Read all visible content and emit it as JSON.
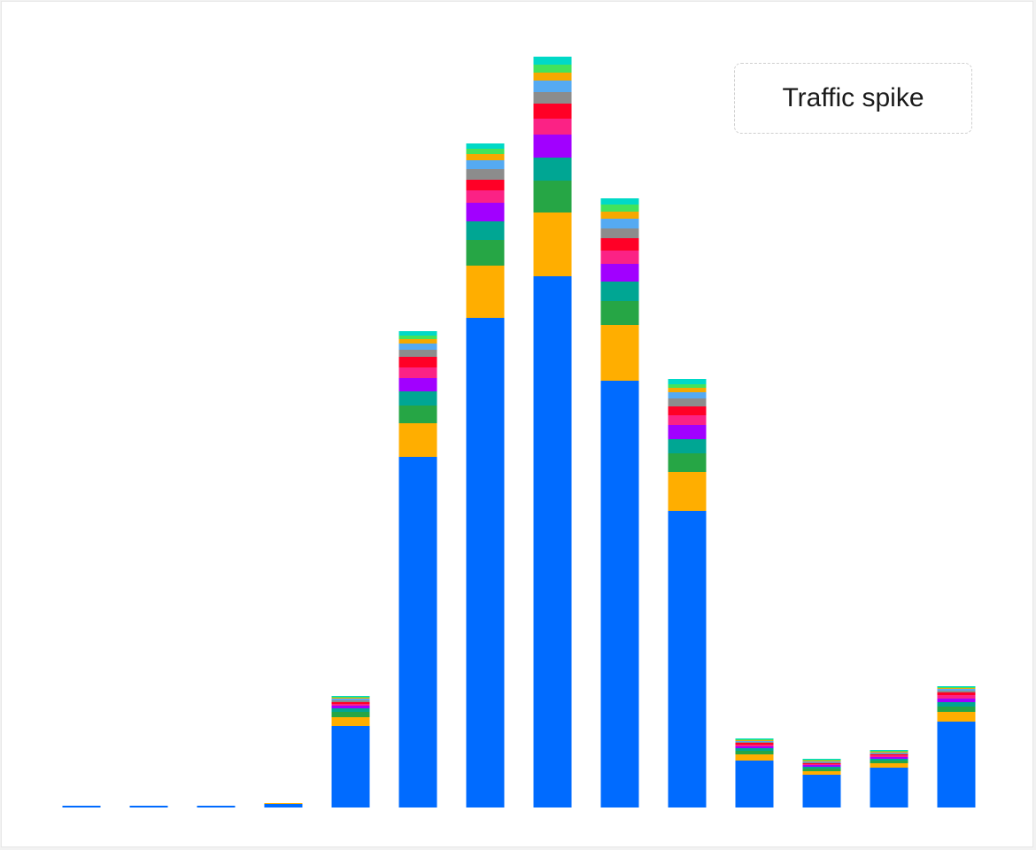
{
  "legend": {
    "label": "Traffic spike"
  },
  "chart_data": {
    "type": "bar",
    "stacked": true,
    "legend_placement": "top-right",
    "grid": false,
    "ylim": [
      0,
      850
    ],
    "categories": [
      "",
      "",
      "",
      "",
      "",
      "",
      "",
      "",
      "",
      "",
      "",
      "",
      "",
      ""
    ],
    "series": [
      {
        "color": "#006bff",
        "values": [
          2,
          2,
          2,
          4,
          92,
          396,
          553,
          600,
          482,
          335,
          53,
          37,
          45,
          97
        ]
      },
      {
        "color": "#ffae00",
        "values": [
          0,
          0,
          0,
          1,
          10,
          38,
          59,
          72,
          63,
          44,
          7,
          4,
          5,
          11
        ]
      },
      {
        "color": "#26a645",
        "values": [
          0,
          0,
          0,
          0,
          6,
          20,
          29,
          36,
          27,
          21,
          4,
          3,
          3,
          6
        ]
      },
      {
        "color": "#00a693",
        "values": [
          0,
          0,
          0,
          0,
          4,
          16,
          21,
          26,
          22,
          16,
          3,
          2,
          2,
          5
        ]
      },
      {
        "color": "#a100ff",
        "values": [
          0,
          0,
          0,
          0,
          3,
          15,
          21,
          26,
          20,
          16,
          2,
          2,
          2,
          4
        ]
      },
      {
        "color": "#fb2285",
        "values": [
          0,
          0,
          0,
          0,
          2,
          12,
          14,
          18,
          15,
          11,
          2,
          1,
          2,
          4
        ]
      },
      {
        "color": "#ff0026",
        "values": [
          0,
          0,
          0,
          0,
          2,
          12,
          12,
          17,
          14,
          10,
          2,
          1,
          1,
          3
        ]
      },
      {
        "color": "#8c8c8c",
        "values": [
          0,
          0,
          0,
          0,
          2,
          8,
          12,
          13,
          11,
          9,
          1,
          1,
          1,
          2
        ]
      },
      {
        "color": "#55aaf2",
        "values": [
          0,
          0,
          0,
          0,
          2,
          7,
          10,
          13,
          11,
          7,
          1,
          1,
          1,
          2
        ]
      },
      {
        "color": "#f5a800",
        "values": [
          0,
          0,
          0,
          0,
          1,
          5,
          7,
          9,
          8,
          5,
          1,
          1,
          1,
          1
        ]
      },
      {
        "color": "#42e35b",
        "values": [
          0,
          0,
          0,
          0,
          1,
          4,
          6,
          9,
          8,
          4,
          1,
          1,
          1,
          1
        ]
      },
      {
        "color": "#00d9c7",
        "values": [
          0,
          0,
          0,
          0,
          1,
          5,
          6,
          9,
          7,
          6,
          1,
          1,
          1,
          1
        ]
      }
    ]
  }
}
